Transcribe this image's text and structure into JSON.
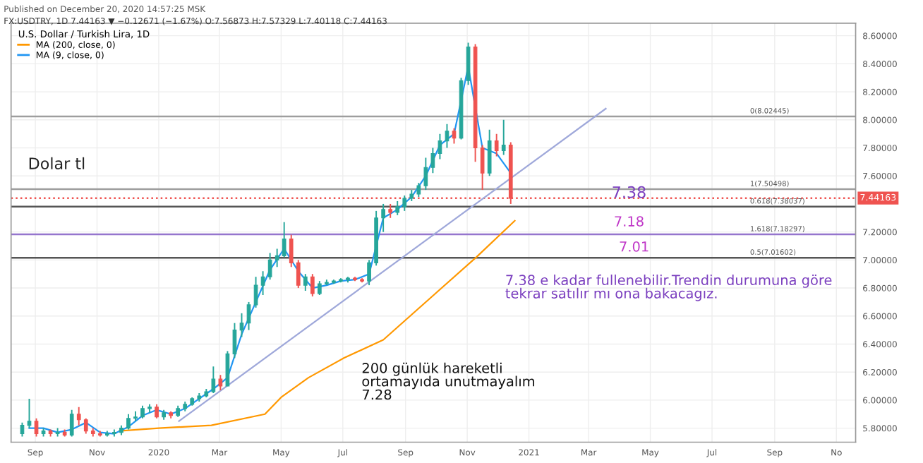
{
  "chart_data": {
    "type": "candlestick",
    "legend_title": "U.S. Dollar / Turkish Lira, 1D",
    "x": [
      "2019-08-19",
      "2019-08-26",
      "2019-09-02",
      "2019-09-09",
      "2019-09-16",
      "2019-09-23",
      "2019-09-30",
      "2019-10-07",
      "2019-10-14",
      "2019-10-21",
      "2019-10-28",
      "2019-11-04",
      "2019-11-11",
      "2019-11-18",
      "2019-11-25",
      "2019-12-02",
      "2019-12-09",
      "2019-12-16",
      "2019-12-23",
      "2019-12-30",
      "2020-01-06",
      "2020-01-13",
      "2020-01-20",
      "2020-01-27",
      "2020-02-03",
      "2020-02-10",
      "2020-02-17",
      "2020-02-24",
      "2020-03-02",
      "2020-03-09",
      "2020-03-16",
      "2020-03-23",
      "2020-03-30",
      "2020-04-06",
      "2020-04-13",
      "2020-04-20",
      "2020-04-27",
      "2020-05-04",
      "2020-05-11",
      "2020-05-18",
      "2020-05-25",
      "2020-06-01",
      "2020-06-08",
      "2020-06-15",
      "2020-06-22",
      "2020-06-29",
      "2020-07-06",
      "2020-07-13",
      "2020-07-20",
      "2020-07-27",
      "2020-08-03",
      "2020-08-10",
      "2020-08-17",
      "2020-08-24",
      "2020-08-31",
      "2020-09-07",
      "2020-09-14",
      "2020-09-21",
      "2020-09-28",
      "2020-10-05",
      "2020-10-12",
      "2020-10-19",
      "2020-10-26",
      "2020-11-02",
      "2020-11-09",
      "2020-11-16",
      "2020-11-23",
      "2020-11-30",
      "2020-12-07",
      "2020-12-14"
    ],
    "ohlc": [
      [
        5.76,
        5.84,
        5.74,
        5.82
      ],
      [
        5.82,
        6.01,
        5.8,
        5.85
      ],
      [
        5.85,
        5.87,
        5.74,
        5.76
      ],
      [
        5.76,
        5.8,
        5.74,
        5.78
      ],
      [
        5.78,
        5.79,
        5.74,
        5.76
      ],
      [
        5.76,
        5.8,
        5.74,
        5.77
      ],
      [
        5.77,
        5.79,
        5.74,
        5.75
      ],
      [
        5.75,
        5.93,
        5.74,
        5.9
      ],
      [
        5.9,
        5.95,
        5.82,
        5.86
      ],
      [
        5.86,
        5.87,
        5.76,
        5.78
      ],
      [
        5.78,
        5.8,
        5.74,
        5.76
      ],
      [
        5.76,
        5.78,
        5.74,
        5.75
      ],
      [
        5.75,
        5.78,
        5.74,
        5.76
      ],
      [
        5.76,
        5.79,
        5.74,
        5.77
      ],
      [
        5.77,
        5.82,
        5.75,
        5.8
      ],
      [
        5.8,
        5.9,
        5.79,
        5.87
      ],
      [
        5.87,
        5.92,
        5.85,
        5.88
      ],
      [
        5.88,
        5.96,
        5.87,
        5.94
      ],
      [
        5.94,
        5.97,
        5.91,
        5.95
      ],
      [
        5.95,
        5.97,
        5.87,
        5.88
      ],
      [
        5.88,
        5.93,
        5.86,
        5.91
      ],
      [
        5.91,
        5.92,
        5.87,
        5.89
      ],
      [
        5.89,
        5.96,
        5.88,
        5.94
      ],
      [
        5.94,
        5.99,
        5.92,
        5.97
      ],
      [
        5.97,
        6.02,
        5.96,
        6.01
      ],
      [
        6.01,
        6.05,
        5.99,
        6.03
      ],
      [
        6.03,
        6.08,
        6.02,
        6.06
      ],
      [
        6.06,
        6.24,
        6.05,
        6.15
      ],
      [
        6.15,
        6.18,
        6.07,
        6.1
      ],
      [
        6.1,
        6.35,
        6.1,
        6.33
      ],
      [
        6.33,
        6.55,
        6.3,
        6.5
      ],
      [
        6.5,
        6.62,
        6.45,
        6.55
      ],
      [
        6.55,
        6.7,
        6.5,
        6.68
      ],
      [
        6.68,
        6.88,
        6.66,
        6.82
      ],
      [
        6.82,
        6.92,
        6.75,
        6.88
      ],
      [
        6.88,
        7.05,
        6.86,
        7.0
      ],
      [
        7.0,
        7.08,
        6.95,
        7.03
      ],
      [
        7.03,
        7.27,
        7.02,
        7.15
      ],
      [
        7.15,
        7.18,
        6.95,
        6.98
      ],
      [
        6.98,
        7.0,
        6.8,
        6.82
      ],
      [
        6.82,
        6.9,
        6.78,
        6.88
      ],
      [
        6.88,
        6.9,
        6.74,
        6.76
      ],
      [
        6.76,
        6.85,
        6.75,
        6.83
      ],
      [
        6.83,
        6.86,
        6.82,
        6.84
      ],
      [
        6.84,
        6.86,
        6.83,
        6.85
      ],
      [
        6.85,
        6.87,
        6.84,
        6.86
      ],
      [
        6.86,
        6.88,
        6.84,
        6.87
      ],
      [
        6.87,
        6.88,
        6.85,
        6.86
      ],
      [
        6.86,
        6.87,
        6.84,
        6.85
      ],
      [
        6.85,
        7.0,
        6.82,
        6.98
      ],
      [
        6.98,
        7.35,
        6.96,
        7.3
      ],
      [
        7.3,
        7.4,
        7.2,
        7.36
      ],
      [
        7.36,
        7.4,
        7.3,
        7.34
      ],
      [
        7.34,
        7.42,
        7.32,
        7.38
      ],
      [
        7.38,
        7.46,
        7.35,
        7.44
      ],
      [
        7.44,
        7.5,
        7.42,
        7.47
      ],
      [
        7.47,
        7.55,
        7.45,
        7.53
      ],
      [
        7.53,
        7.73,
        7.5,
        7.66
      ],
      [
        7.66,
        7.8,
        7.62,
        7.76
      ],
      [
        7.76,
        7.9,
        7.72,
        7.85
      ],
      [
        7.85,
        7.97,
        7.8,
        7.92
      ],
      [
        7.92,
        7.94,
        7.83,
        7.87
      ],
      [
        7.87,
        8.3,
        7.86,
        8.28
      ],
      [
        8.28,
        8.55,
        8.25,
        8.52
      ],
      [
        8.52,
        8.54,
        7.7,
        7.8
      ],
      [
        7.8,
        7.82,
        7.5,
        7.62
      ],
      [
        7.62,
        7.93,
        7.6,
        7.85
      ],
      [
        7.85,
        7.9,
        7.74,
        7.78
      ],
      [
        7.78,
        8.0,
        7.75,
        7.82
      ],
      [
        7.82,
        7.84,
        7.4,
        7.44
      ]
    ],
    "colors": [
      "#26a69a",
      "#26a69a",
      "#ef5350",
      "#26a69a",
      "#ef5350",
      "#26a69a",
      "#ef5350",
      "#26a69a",
      "#ef5350",
      "#ef5350",
      "#ef5350",
      "#ef5350",
      "#26a69a",
      "#26a69a",
      "#26a69a",
      "#26a69a",
      "#26a69a",
      "#26a69a",
      "#26a69a",
      "#ef5350",
      "#26a69a",
      "#ef5350",
      "#26a69a",
      "#26a69a",
      "#26a69a",
      "#26a69a",
      "#26a69a",
      "#26a69a",
      "#ef5350",
      "#26a69a",
      "#26a69a",
      "#26a69a",
      "#26a69a",
      "#26a69a",
      "#26a69a",
      "#26a69a",
      "#26a69a",
      "#26a69a",
      "#ef5350",
      "#ef5350",
      "#26a69a",
      "#ef5350",
      "#26a69a",
      "#26a69a",
      "#26a69a",
      "#26a69a",
      "#26a69a",
      "#ef5350",
      "#ef5350",
      "#26a69a",
      "#26a69a",
      "#26a69a",
      "#ef5350",
      "#26a69a",
      "#26a69a",
      "#26a69a",
      "#26a69a",
      "#26a69a",
      "#26a69a",
      "#26a69a",
      "#26a69a",
      "#ef5350",
      "#26a69a",
      "#26a69a",
      "#ef5350",
      "#ef5350",
      "#26a69a",
      "#ef5350",
      "#26a69a",
      "#ef5350"
    ],
    "series": [
      {
        "type": "line",
        "name": "MA (200, close, 0)",
        "color": "#ff9800",
        "x": [
          "2019-11-23",
          "2020-01-01",
          "2020-02-22",
          "2020-04-15",
          "2020-05-01",
          "2020-05-28",
          "2020-07-02",
          "2020-08-10",
          "2020-10-02",
          "2020-11-10",
          "2020-12-18"
        ],
        "values": [
          5.78,
          5.8,
          5.82,
          5.9,
          6.02,
          6.16,
          6.3,
          6.43,
          6.77,
          7.02,
          7.28
        ]
      },
      {
        "type": "line",
        "name": "MA (9, close, 0)",
        "color": "#2196f3",
        "x": [
          "2019-08-26",
          "2019-09-09",
          "2019-09-23",
          "2019-10-07",
          "2019-10-21",
          "2019-11-04",
          "2019-11-18",
          "2019-12-02",
          "2019-12-16",
          "2019-12-30",
          "2020-01-13",
          "2020-01-27",
          "2020-02-10",
          "2020-02-24",
          "2020-03-09",
          "2020-03-23",
          "2020-04-06",
          "2020-04-20",
          "2020-05-04",
          "2020-05-18",
          "2020-06-01",
          "2020-06-15",
          "2020-06-29",
          "2020-07-13",
          "2020-07-27",
          "2020-08-10",
          "2020-08-24",
          "2020-09-07",
          "2020-09-21",
          "2020-10-05",
          "2020-10-19",
          "2020-11-02",
          "2020-11-16",
          "2020-11-30",
          "2020-12-14"
        ],
        "values": [
          5.8,
          5.8,
          5.77,
          5.79,
          5.84,
          5.77,
          5.76,
          5.81,
          5.89,
          5.93,
          5.9,
          5.94,
          6.01,
          6.08,
          6.16,
          6.47,
          6.7,
          6.93,
          7.08,
          6.92,
          6.8,
          6.82,
          6.85,
          6.86,
          6.9,
          7.3,
          7.36,
          7.45,
          7.6,
          7.82,
          7.9,
          8.38,
          7.8,
          7.76,
          7.62
        ]
      },
      {
        "type": "line",
        "color": "#9fa8da",
        "x": [
          "2020-01-21",
          "2021-03-18"
        ],
        "values": [
          5.85,
          8.08
        ]
      }
    ],
    "ref_lines": [
      {
        "axis": "y",
        "value": 8.02445,
        "label": "0(8.02445)",
        "color": "#9e9e9e",
        "line_style": "solid"
      },
      {
        "axis": "y",
        "value": 7.50498,
        "label": "1(7.50498)",
        "color": "#9e9e9e",
        "line_style": "solid"
      },
      {
        "axis": "y",
        "value": 7.38037,
        "label": "0.618(7.38037)",
        "color": "#555555",
        "line_style": "solid"
      },
      {
        "axis": "y",
        "value": 7.18297,
        "label": "1.618(7.18297)",
        "color": "#9575cd",
        "line_style": "solid"
      },
      {
        "axis": "y",
        "value": 7.01602,
        "label": "0.5(7.01602)",
        "color": "#555555",
        "line_style": "solid"
      },
      {
        "axis": "y",
        "value": 7.44163,
        "label": "7.44163",
        "color": "#ef5350",
        "line_style": "dotted"
      }
    ],
    "annotations": [
      "Published on December 20, 2020 14:57:25 MSK",
      "FX:USDTRY, 1D 7.44163 ▼ −0.12671 (−1.67%) O:7.56873 H:7.57329 L:7.40118 C:7.44163",
      "Dolar tl",
      "7.38 e kadar fullenebilir.Trendin durumuna göre\ntekrar satılır mı ona bakacagız.",
      "200 günlük hareketli\nortamayıda unutmayalım\n7.28",
      {
        "text": "7.38",
        "x": "2021-04-10",
        "y": 7.42
      },
      {
        "text": "7.18",
        "x": "2021-04-10",
        "y": 7.22
      },
      {
        "text": "7.01",
        "x": "2021-04-15",
        "y": 7.04
      }
    ],
    "xlim": [
      "2019-08-08",
      "2021-11-20"
    ],
    "xticks": [
      {
        "value": "2019-09-01",
        "label": "Sep"
      },
      {
        "value": "2019-11-01",
        "label": "Nov"
      },
      {
        "value": "2020-01-01",
        "label": "2020"
      },
      {
        "value": "2020-03-01",
        "label": "Mar"
      },
      {
        "value": "2020-05-01",
        "label": "May"
      },
      {
        "value": "2020-07-01",
        "label": "Jul"
      },
      {
        "value": "2020-09-01",
        "label": "Sep"
      },
      {
        "value": "2020-11-01",
        "label": "Nov"
      },
      {
        "value": "2021-01-01",
        "label": "2021"
      },
      {
        "value": "2021-03-01",
        "label": "Mar"
      },
      {
        "value": "2021-05-01",
        "label": "May"
      },
      {
        "value": "2021-07-01",
        "label": "Jul"
      },
      {
        "value": "2021-09-01",
        "label": "Sep"
      },
      {
        "value": "2021-11-01",
        "label": "No"
      }
    ],
    "ylim": [
      5.7,
      8.69
    ],
    "yticks": [
      {
        "value": 5.8,
        "label": "5.80000"
      },
      {
        "value": 6.0,
        "label": "6.00000"
      },
      {
        "value": 6.2,
        "label": "6.20000"
      },
      {
        "value": 6.4,
        "label": "6.40000"
      },
      {
        "value": 6.6,
        "label": "6.60000"
      },
      {
        "value": 6.8,
        "label": "6.80000"
      },
      {
        "value": 7.0,
        "label": "7.00000"
      },
      {
        "value": 7.2,
        "label": "7.20000"
      },
      {
        "value": 7.6,
        "label": "7.60000"
      },
      {
        "value": 7.8,
        "label": "7.80000"
      },
      {
        "value": 8.0,
        "label": "8.00000"
      },
      {
        "value": 8.2,
        "label": "8.20000"
      },
      {
        "value": 8.4,
        "label": "8.40000"
      },
      {
        "value": 8.6,
        "label": "8.60000"
      }
    ],
    "grid": true,
    "legend": "top left"
  }
}
